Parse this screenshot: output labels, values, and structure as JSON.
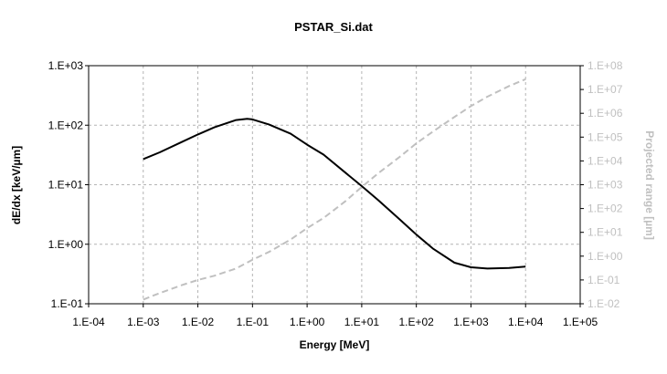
{
  "chart_data": {
    "type": "line",
    "title": "PSTAR_Si.dat",
    "xlabel": "Energy  [MeV]",
    "ylabel": "dE/dx  [keV/µm]",
    "y2label": "Projected range  [µm]",
    "x_scale": "log",
    "y_scale": "log",
    "y2_scale": "log",
    "xlim": [
      0.0001,
      100000
    ],
    "ylim": [
      0.1,
      1000
    ],
    "y2lim": [
      0.01,
      100000000
    ],
    "grid": true,
    "legend": "none",
    "x_ticks": [
      "1.E-04",
      "1.E-03",
      "1.E-02",
      "1.E-01",
      "1.E+00",
      "1.E+01",
      "1.E+02",
      "1.E+03",
      "1.E+04",
      "1.E+05"
    ],
    "y_ticks": [
      "1.E-01",
      "1.E+00",
      "1.E+01",
      "1.E+02",
      "1.E+03"
    ],
    "y2_ticks": [
      "1.E-02",
      "1.E-01",
      "1.E+00",
      "1.E+01",
      "1.E+02",
      "1.E+03",
      "1.E+04",
      "1.E+05",
      "1.E+06",
      "1.E+07",
      "1.E+08"
    ],
    "series": [
      {
        "axis": "left",
        "color": "#000000",
        "style": "solid",
        "x": [
          0.001,
          0.002,
          0.005,
          0.01,
          0.02,
          0.05,
          0.08,
          0.1,
          0.2,
          0.5,
          1,
          2,
          5,
          10,
          20,
          50,
          100,
          200,
          500,
          1000,
          2000,
          5000,
          10000
        ],
        "y": [
          27,
          35,
          52,
          70,
          92,
          122,
          128,
          125,
          103,
          72,
          47,
          32,
          16,
          9.5,
          5.5,
          2.6,
          1.45,
          0.85,
          0.49,
          0.41,
          0.39,
          0.4,
          0.42
        ]
      },
      {
        "axis": "right",
        "color": "#c0c0c0",
        "style": "dashed",
        "x": [
          0.001,
          0.002,
          0.005,
          0.01,
          0.02,
          0.05,
          0.1,
          0.2,
          0.5,
          1,
          2,
          5,
          10,
          20,
          50,
          100,
          200,
          500,
          1000,
          2000,
          5000,
          10000
        ],
        "y": [
          0.015,
          0.028,
          0.06,
          0.1,
          0.15,
          0.3,
          0.7,
          1.5,
          5,
          15,
          40,
          200,
          800,
          3000,
          15000,
          55000,
          170000,
          700000,
          2000000,
          5000000,
          14000000,
          27000000
        ]
      }
    ]
  }
}
